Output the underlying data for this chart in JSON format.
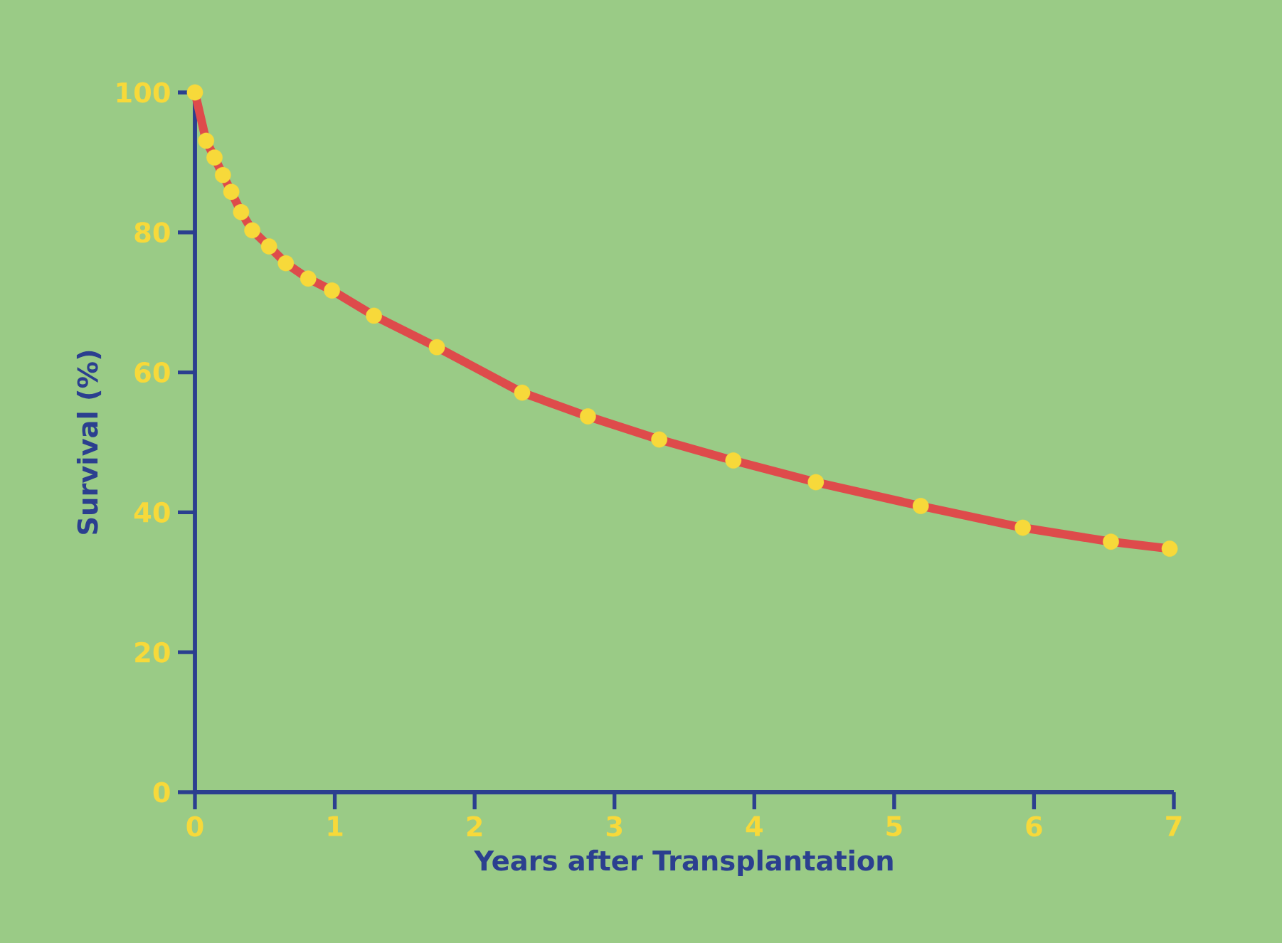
{
  "chart_data": {
    "type": "line",
    "xlabel": "Years after Transplantation",
    "ylabel": "Survival (%)",
    "xlim": [
      0,
      7
    ],
    "ylim": [
      0,
      100
    ],
    "xticks": [
      0,
      1,
      2,
      3,
      4,
      5,
      6,
      7
    ],
    "yticks": [
      0,
      20,
      40,
      60,
      80,
      100
    ],
    "marker": "circle",
    "line_style": "solid",
    "series": [
      {
        "color": "#de4b4b",
        "x": [
          0,
          0.08,
          0.14,
          0.2,
          0.26,
          0.33,
          0.41,
          0.53,
          0.65,
          0.81,
          0.98,
          1.28,
          1.73,
          2.34,
          2.81,
          3.32,
          3.85,
          4.44,
          5.19,
          5.92,
          6.55,
          6.97
        ],
        "values": [
          100,
          93.1,
          90.7,
          88.2,
          85.8,
          82.9,
          80.3,
          78,
          75.6,
          73.4,
          71.7,
          68.1,
          63.6,
          57.1,
          53.7,
          50.4,
          47.4,
          44.3,
          40.9,
          37.8,
          35.8,
          34.8
        ]
      }
    ]
  }
}
